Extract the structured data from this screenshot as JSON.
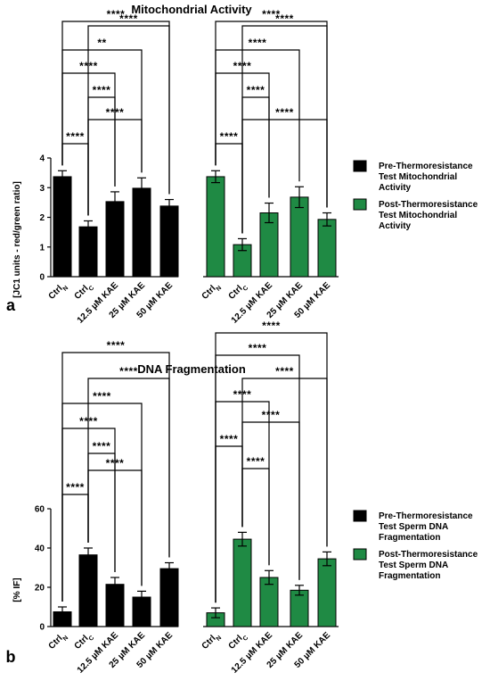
{
  "colors": {
    "pre": "#000000",
    "post": "#1f8a44",
    "line": "#000000"
  },
  "chart_data": [
    {
      "type": "bar",
      "panel": "a",
      "title": "Mitochondrial Activity",
      "xlabel": "",
      "ylabel": "[JC1 units - red/green ratio]",
      "ylim": [
        0,
        4
      ],
      "yticks": [
        0,
        1,
        2,
        3,
        4
      ],
      "categories": [
        "Ctrl_N",
        "Ctrl_C",
        "12.5 µM KAE",
        "25 µM KAE",
        "50 µM KAE"
      ],
      "series": [
        {
          "name": "Pre-Thermoresistance Test Mitochondrial Activity",
          "legend_lines": [
            "Pre-Thermoresistance",
            "Test Mitochondrial",
            "Activity"
          ],
          "values": [
            3.37,
            1.68,
            2.53,
            2.98,
            2.38
          ],
          "errors": [
            0.2,
            0.2,
            0.33,
            0.35,
            0.22
          ]
        },
        {
          "name": "Post-Thermoresistance Test Mitochondrial Activity",
          "legend_lines": [
            "Post-Thermoresistance",
            "Test Mitochondrial",
            "Activity"
          ],
          "values": [
            3.37,
            1.08,
            2.15,
            2.68,
            1.93
          ],
          "errors": [
            0.2,
            0.2,
            0.33,
            0.35,
            0.22
          ]
        }
      ],
      "significance": [
        {
          "from": 0,
          "to": 1,
          "label": "****"
        },
        {
          "from": 1,
          "to": 3,
          "label": "****"
        },
        {
          "from": 1,
          "to": 2,
          "label": "****"
        },
        {
          "from": 0,
          "to": 2,
          "label": "****"
        },
        {
          "from": 0,
          "to": 3,
          "label": "**"
        },
        {
          "from": 1,
          "to": 4,
          "label": "****"
        },
        {
          "from": 0,
          "to": 4,
          "label": "****"
        }
      ],
      "significance_post": [
        {
          "from": 0,
          "to": 1,
          "label": "****"
        },
        {
          "from": 1,
          "to": 4,
          "label": "****"
        },
        {
          "from": 1,
          "to": 2,
          "label": "****"
        },
        {
          "from": 0,
          "to": 2,
          "label": "****"
        },
        {
          "from": 0,
          "to": 3,
          "label": "****"
        },
        {
          "from": 1,
          "to": 4,
          "label": "****"
        },
        {
          "from": 0,
          "to": 4,
          "label": "****"
        }
      ]
    },
    {
      "type": "bar",
      "panel": "b",
      "title": "DNA Fragmentation",
      "xlabel": "",
      "ylabel": "[% IF]",
      "ylim": [
        0,
        60
      ],
      "yticks": [
        0,
        20,
        40,
        60
      ],
      "categories": [
        "Ctrl_N",
        "Ctrl_C",
        "12.5 µM KAE",
        "25 µM KAE",
        "50 µM KAE"
      ],
      "series": [
        {
          "name": "Pre-Thermoresistance Test Sperm DNA Fragmentation",
          "legend_lines": [
            "Pre-Thermoresistance",
            "Test Sperm DNA",
            "Fragmentation"
          ],
          "values": [
            7.5,
            36.5,
            21.5,
            15.0,
            29.5
          ],
          "errors": [
            2.5,
            3.5,
            3.5,
            3.0,
            3.0
          ]
        },
        {
          "name": "Post-Thermoresistance Test Sperm DNA Fragmentation",
          "legend_lines": [
            "Post-Thermoresistance",
            "Test Sperm DNA",
            "Fragmentation"
          ],
          "values": [
            7.0,
            44.5,
            25.0,
            18.5,
            34.5
          ],
          "errors": [
            2.5,
            3.5,
            3.5,
            2.5,
            3.5
          ]
        }
      ],
      "significance": [
        {
          "from": 0,
          "to": 1,
          "label": "****"
        },
        {
          "from": 1,
          "to": 3,
          "label": "****"
        },
        {
          "from": 1,
          "to": 2,
          "label": "****"
        },
        {
          "from": 0,
          "to": 2,
          "label": "****"
        },
        {
          "from": 0,
          "to": 3,
          "label": "****"
        },
        {
          "from": 1,
          "to": 4,
          "label": "****"
        },
        {
          "from": 0,
          "to": 4,
          "label": "****"
        }
      ],
      "significance_post": [
        {
          "from": 1,
          "to": 2,
          "label": "****"
        },
        {
          "from": 0,
          "to": 1,
          "label": "****"
        },
        {
          "from": 1,
          "to": 3,
          "label": "****"
        },
        {
          "from": 0,
          "to": 2,
          "label": "****"
        },
        {
          "from": 1,
          "to": 4,
          "label": "****"
        },
        {
          "from": 0,
          "to": 3,
          "label": "****"
        },
        {
          "from": 0,
          "to": 4,
          "label": "****"
        }
      ]
    }
  ]
}
